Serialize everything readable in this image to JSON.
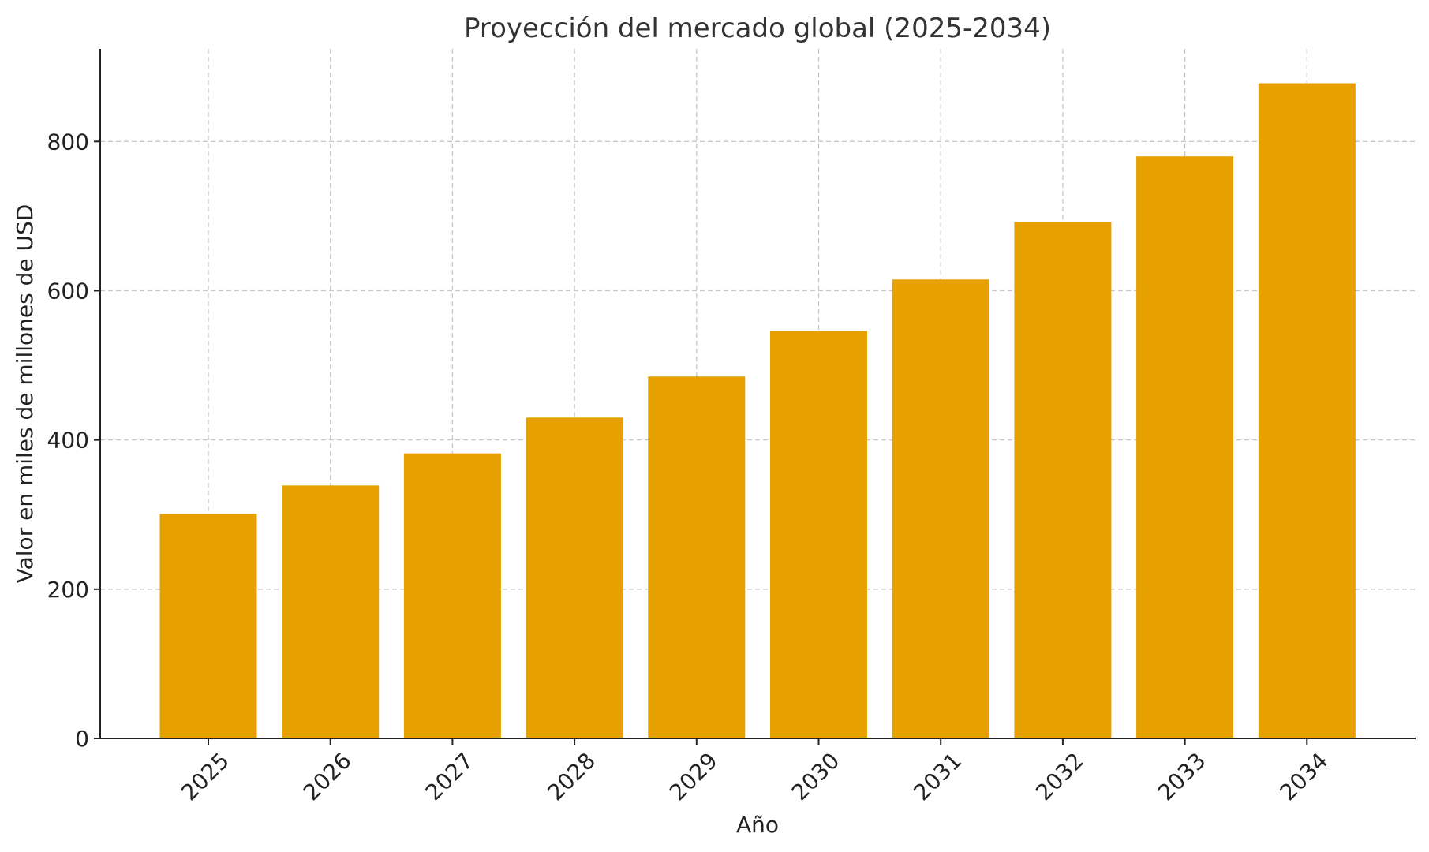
{
  "chart_data": {
    "type": "bar",
    "title": "Proyección del mercado global (2025-2034)",
    "xlabel": "Año",
    "ylabel": "Valor en miles de millones de USD",
    "categories": [
      "2025",
      "2026",
      "2027",
      "2028",
      "2029",
      "2030",
      "2031",
      "2032",
      "2033",
      "2034"
    ],
    "values": [
      301,
      339,
      382,
      430,
      485,
      546,
      615,
      692,
      780,
      878
    ],
    "ylim": [
      0,
      924
    ],
    "yticks": [
      0,
      200,
      400,
      600,
      800
    ],
    "grid": true,
    "bar_color": "#e6a000"
  }
}
